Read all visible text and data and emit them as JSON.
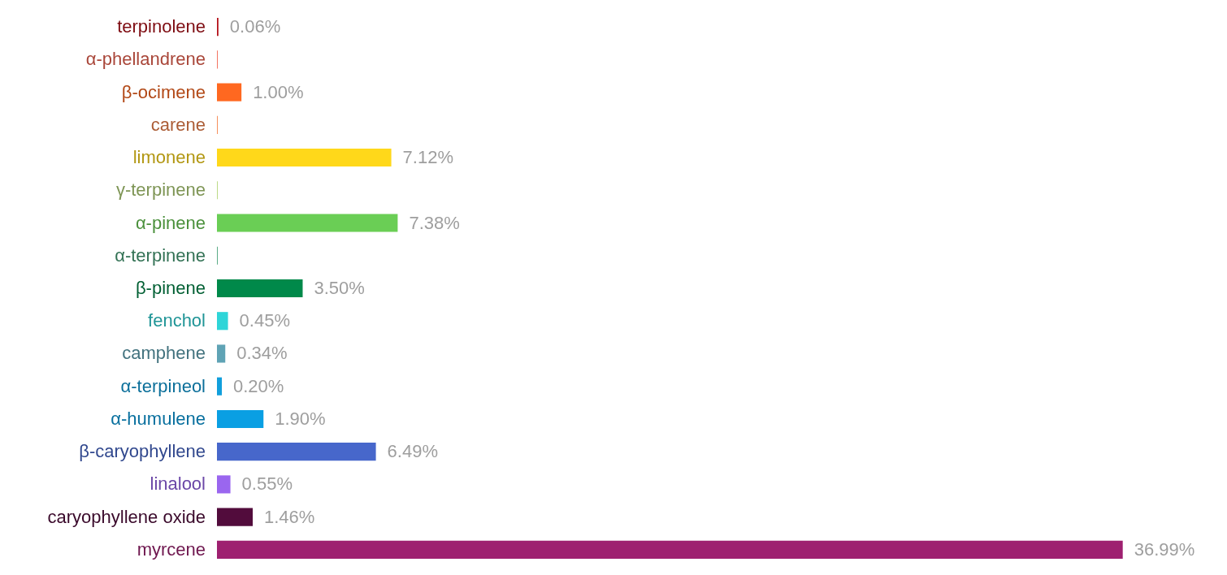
{
  "chart_data": {
    "type": "bar",
    "orientation": "horizontal",
    "categories": [
      "terpinolene",
      "α-phellandrene",
      "β-ocimene",
      "carene",
      "limonene",
      "γ-terpinene",
      "α-pinene",
      "α-terpinene",
      "β-pinene",
      "fenchol",
      "camphene",
      "α-terpineol",
      "α-humulene",
      "β-caryophyllene",
      "linalool",
      "caryophyllene oxide",
      "myrcene"
    ],
    "values": [
      0.06,
      0.03,
      1.0,
      0.03,
      7.12,
      0.03,
      7.38,
      0.03,
      3.5,
      0.45,
      0.34,
      0.2,
      1.9,
      6.49,
      0.55,
      1.46,
      36.99
    ],
    "colors": [
      "#b5121b",
      "#f26552",
      "#ff6820",
      "#f5844c",
      "#ffd81a",
      "#b5d67a",
      "#6ace55",
      "#4aa37a",
      "#00894a",
      "#2ed5d8",
      "#5fa3b5",
      "#119fdc",
      "#0a9fe3",
      "#4767cb",
      "#9a66ef",
      "#520c3c",
      "#9e2070"
    ],
    "value_labels": [
      "0.06%",
      null,
      "1.00%",
      null,
      "7.12%",
      null,
      "7.38%",
      null,
      "3.50%",
      "0.45%",
      "0.34%",
      "0.20%",
      "1.90%",
      "6.49%",
      "0.55%",
      "1.46%",
      "36.99%"
    ],
    "xlim": [
      0,
      37
    ],
    "tick_labels": "y"
  }
}
